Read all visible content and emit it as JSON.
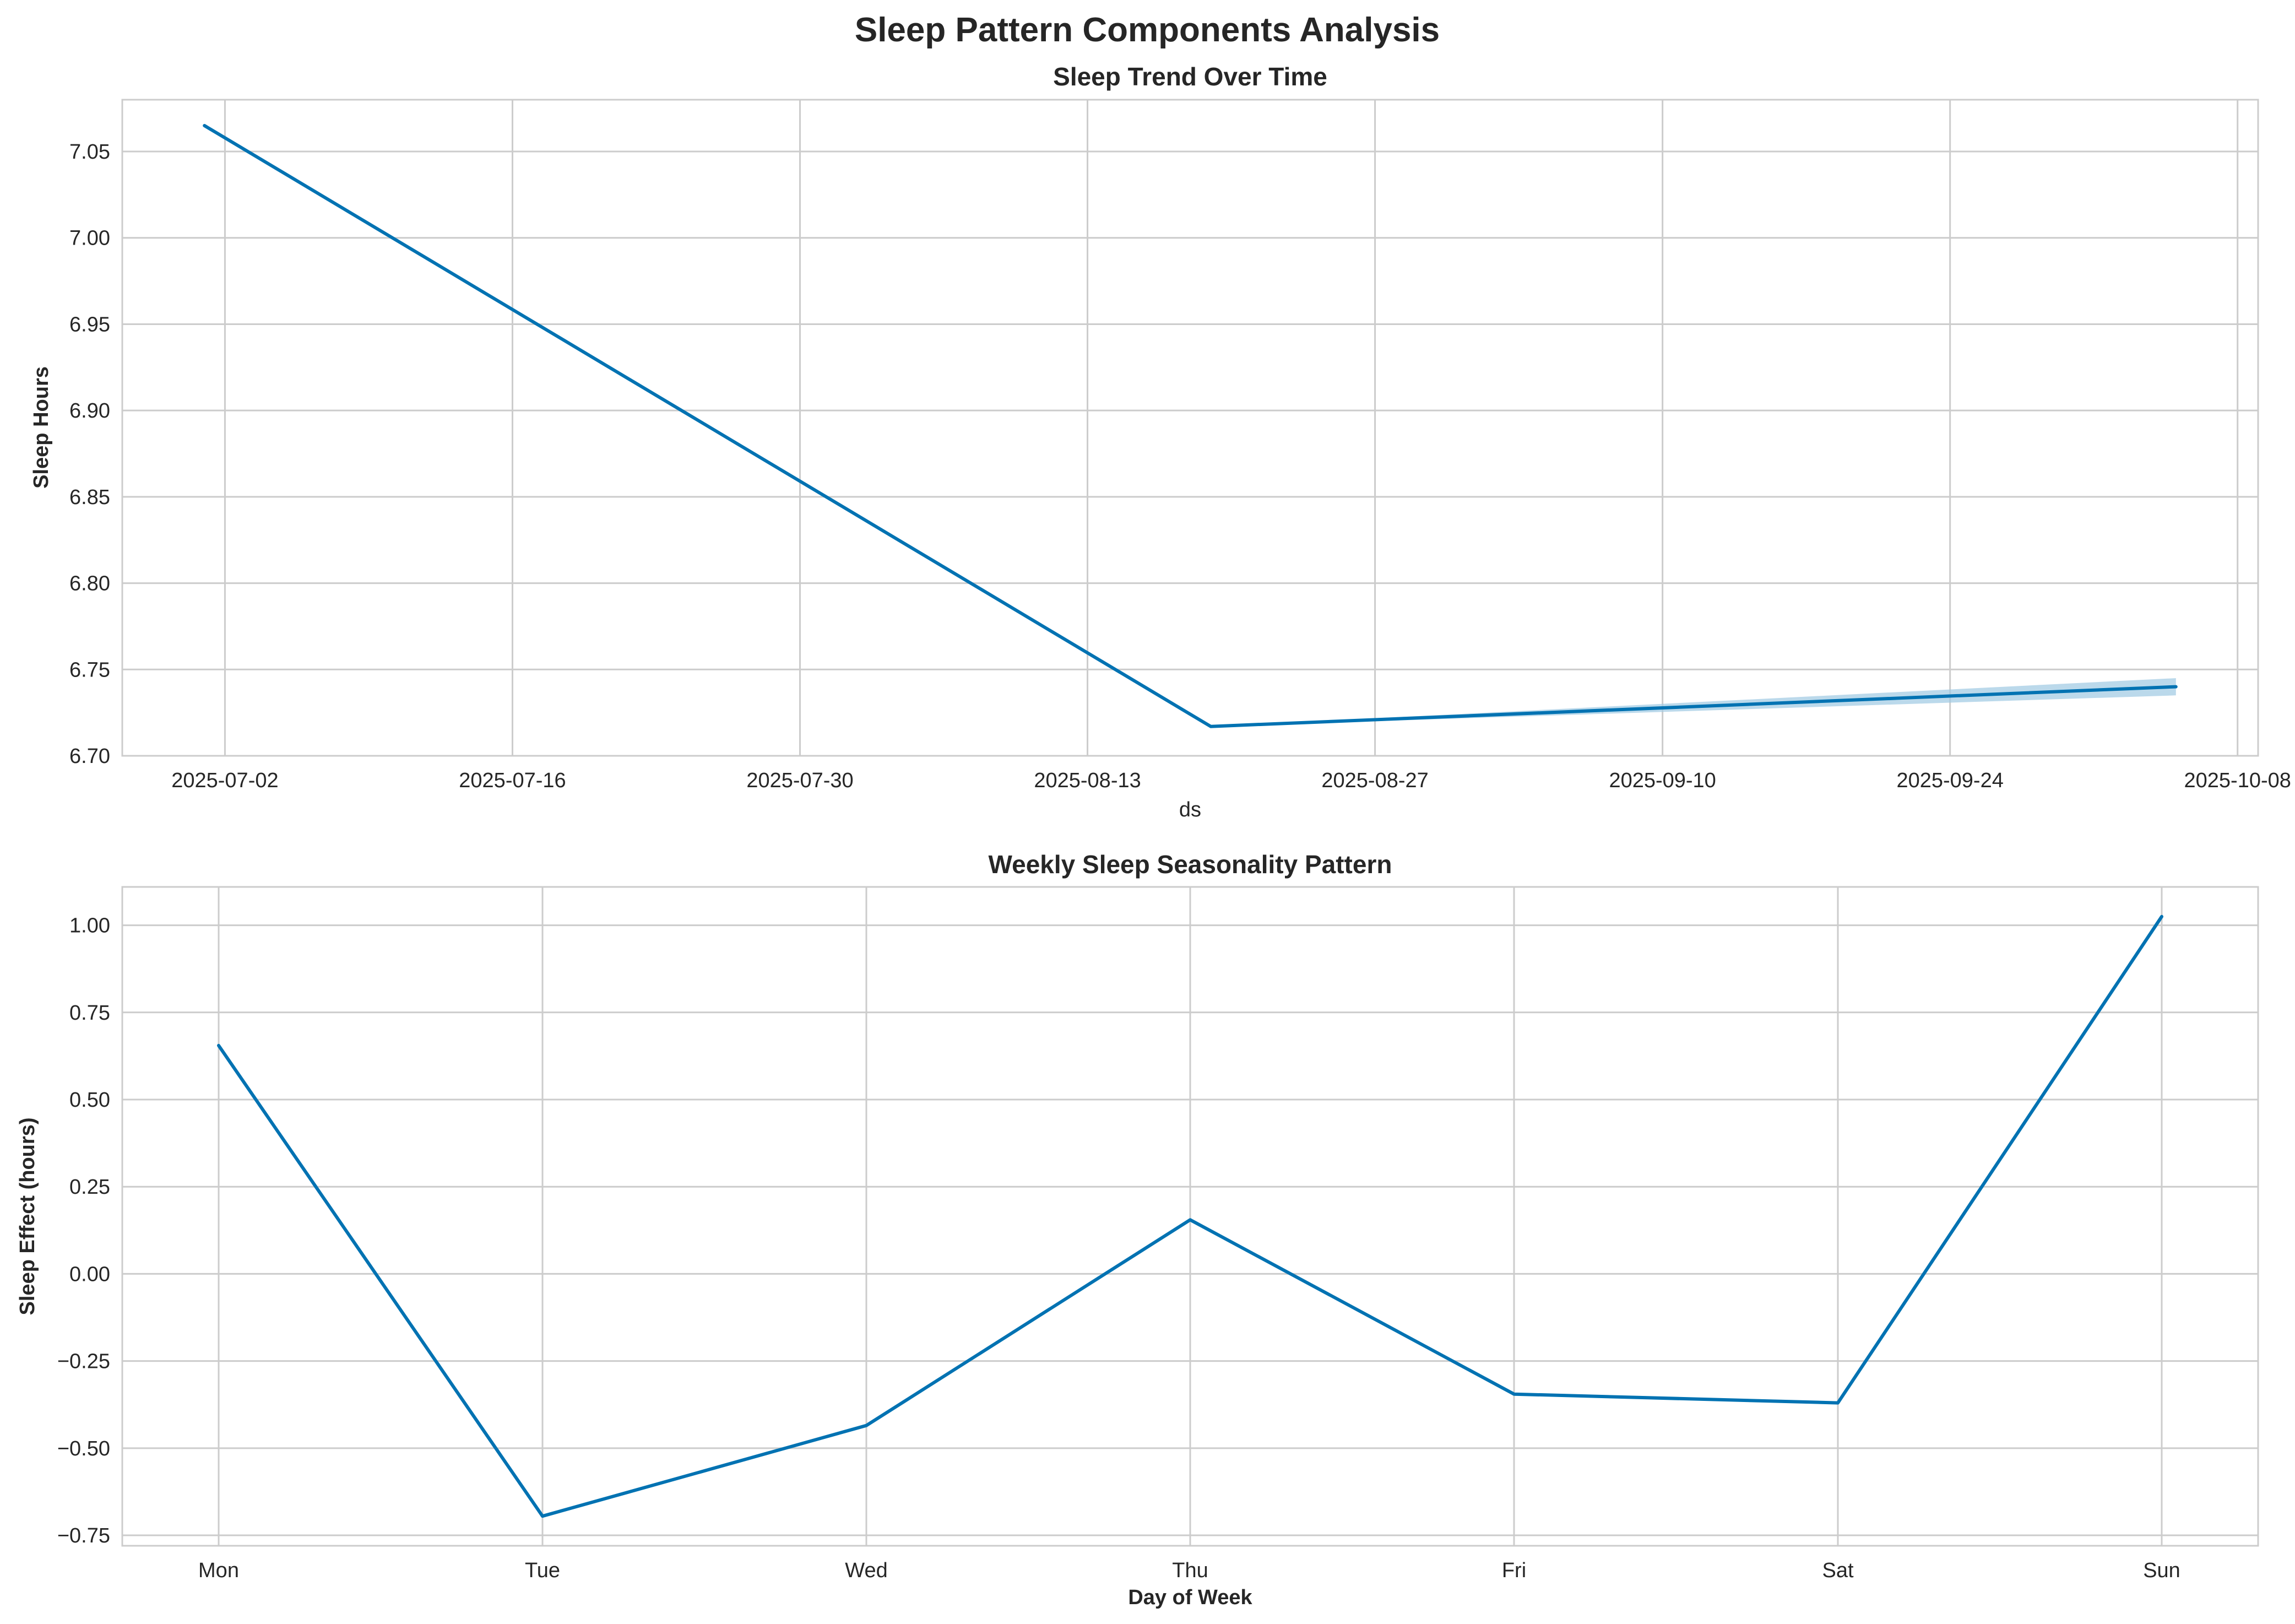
{
  "figure": {
    "title": "Sleep Pattern Components Analysis"
  },
  "colors": {
    "line": "#0072b2",
    "band": "#9ec9e2",
    "grid": "#cccccc",
    "text": "#262626"
  },
  "chart_data": [
    {
      "type": "line",
      "title": "Sleep Trend Over Time",
      "xlabel": "ds",
      "ylabel": "Sleep Hours",
      "x_axis_type": "date",
      "xlim": [
        "2025-06-27",
        "2025-10-09"
      ],
      "ylim": [
        6.7,
        7.08
      ],
      "x_ticks": [
        "2025-07-02",
        "2025-07-16",
        "2025-07-30",
        "2025-08-13",
        "2025-08-27",
        "2025-09-10",
        "2025-09-24",
        "2025-10-08"
      ],
      "y_ticks": [
        "6.70",
        "6.75",
        "6.80",
        "6.85",
        "6.90",
        "6.95",
        "7.00",
        "7.05"
      ],
      "grid": true,
      "series": [
        {
          "x": [
            "2025-07-01",
            "2025-08-19",
            "2025-10-05"
          ],
          "y": [
            7.065,
            6.717,
            6.74
          ],
          "lower": [
            7.065,
            6.717,
            6.735
          ],
          "upper": [
            7.065,
            6.717,
            6.745
          ]
        }
      ]
    },
    {
      "type": "line",
      "title": "Weekly Sleep Seasonality Pattern",
      "xlabel": "Day of Week",
      "ylabel": "Sleep Effect (hours)",
      "ylim": [
        -0.78,
        1.11
      ],
      "categories": [
        "Mon",
        "Tue",
        "Wed",
        "Thu",
        "Fri",
        "Sat",
        "Sun"
      ],
      "y_ticks": [
        "1.00",
        "0.75",
        "0.50",
        "0.25",
        "0.00",
        "−0.25",
        "−0.50",
        "−0.75"
      ],
      "y_tick_values": [
        1.0,
        0.75,
        0.5,
        0.25,
        0.0,
        -0.25,
        -0.5,
        -0.75
      ],
      "grid": true,
      "series": [
        {
          "values": [
            0.655,
            -0.695,
            -0.435,
            0.155,
            -0.345,
            -0.37,
            1.025
          ]
        }
      ]
    }
  ]
}
